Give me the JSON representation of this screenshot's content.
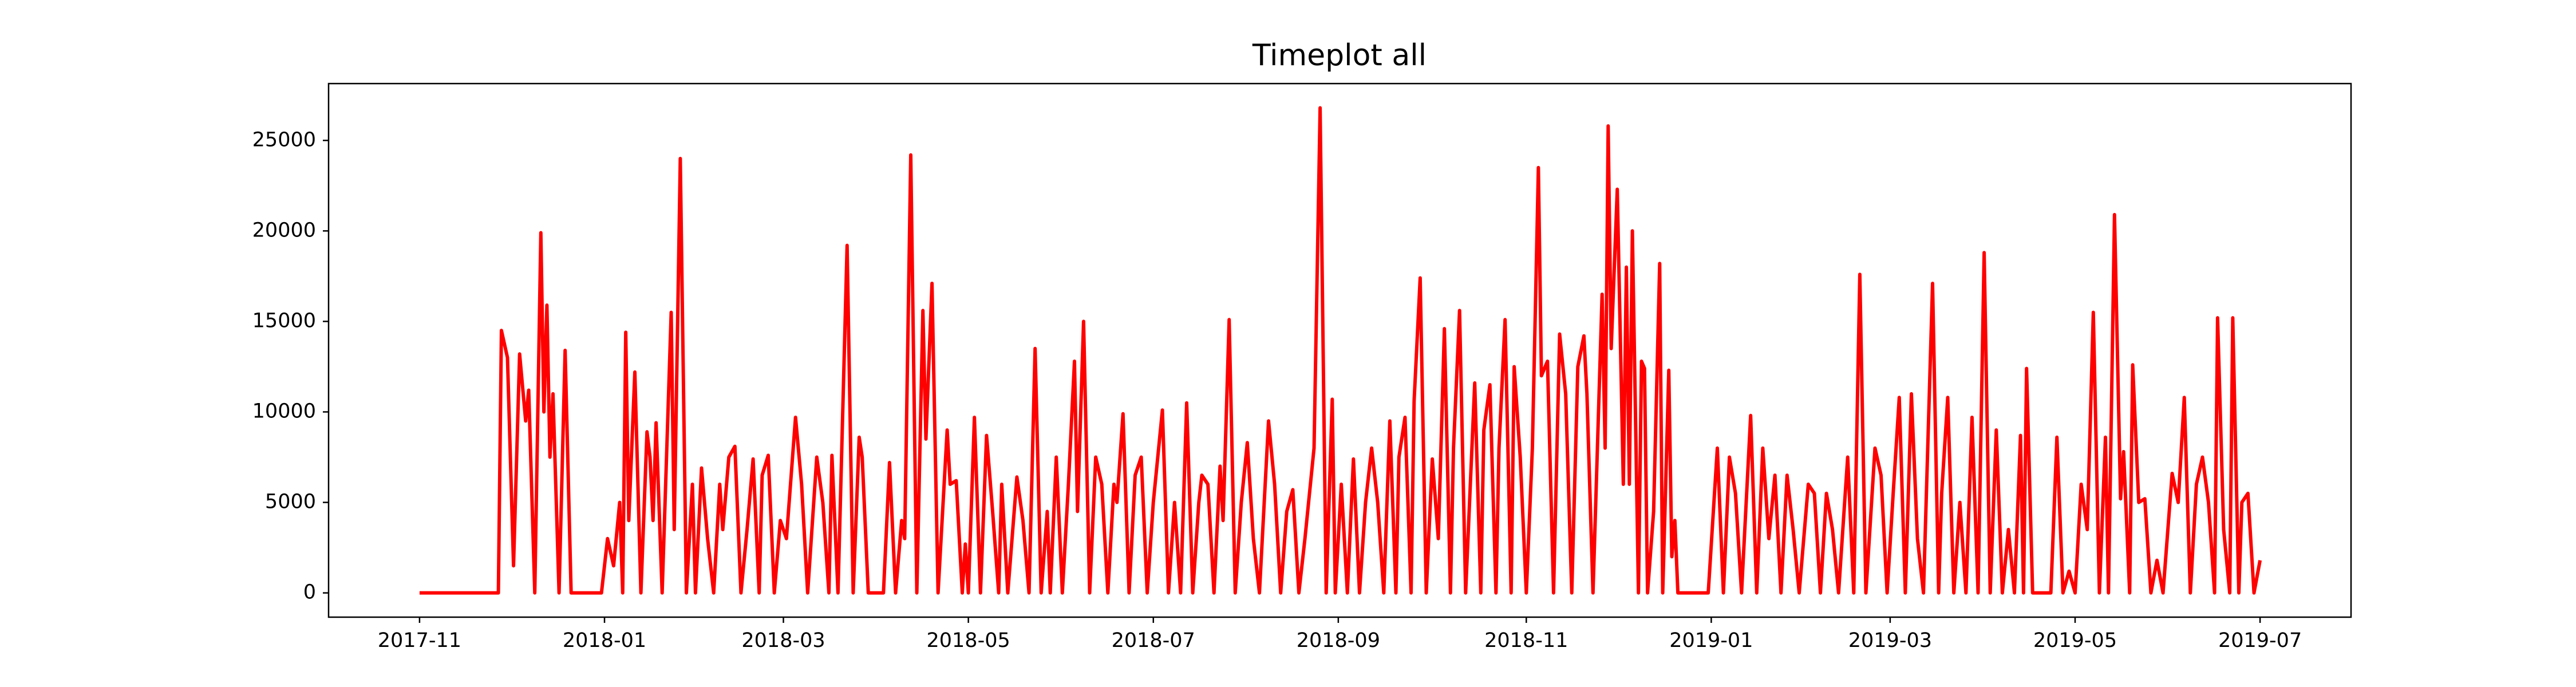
{
  "chart_data": {
    "type": "line",
    "title": "Timeplot all",
    "x": [
      0,
      26,
      27,
      29,
      31,
      33,
      35,
      36,
      38,
      40,
      41,
      42,
      43,
      44,
      46,
      48,
      50,
      60,
      62,
      64,
      66,
      67,
      68,
      69,
      71,
      73,
      75,
      76,
      77,
      78,
      80,
      83,
      84,
      86,
      88,
      90,
      91,
      93,
      95,
      97,
      99,
      100,
      102,
      104,
      106,
      108,
      110,
      112,
      113,
      115,
      117,
      119,
      121,
      124,
      126,
      128,
      131,
      133,
      135,
      136,
      138,
      141,
      143,
      145,
      146,
      148,
      153,
      155,
      157,
      159,
      160,
      162,
      164,
      166,
      167,
      169,
      171,
      174,
      175,
      177,
      179,
      180,
      181,
      183,
      185,
      187,
      189,
      191,
      192,
      194,
      197,
      199,
      201,
      203,
      205,
      207,
      208,
      210,
      212,
      214,
      216,
      217,
      219,
      221,
      223,
      225,
      227,
      229,
      230,
      232,
      234,
      236,
      238,
      240,
      242,
      245,
      247,
      249,
      251,
      253,
      255,
      257,
      258,
      260,
      262,
      264,
      265,
      267,
      269,
      271,
      273,
      275,
      277,
      280,
      282,
      284,
      286,
      288,
      290,
      292,
      295,
      297,
      299,
      301,
      302,
      304,
      306,
      308,
      310,
      312,
      314,
      316,
      318,
      320,
      322,
      323,
      325,
      327,
      328,
      330,
      332,
      334,
      336,
      338,
      340,
      341,
      343,
      345,
      348,
      350,
      351,
      353,
      355,
      356,
      358,
      360,
      361,
      363,
      365,
      367,
      369,
      370,
      372,
      374,
      376,
      378,
      380,
      382,
      384,
      385,
      387,
      390,
      391,
      392,
      393,
      395,
      397,
      398,
      399,
      400,
      402,
      403,
      404,
      405,
      407,
      409,
      410,
      412,
      413,
      414,
      415,
      425,
      428,
      430,
      432,
      434,
      436,
      439,
      441,
      443,
      445,
      447,
      449,
      451,
      453,
      455,
      458,
      460,
      462,
      464,
      466,
      468,
      471,
      473,
      475,
      477,
      480,
      482,
      484,
      486,
      488,
      490,
      492,
      494,
      496,
      499,
      501,
      502,
      504,
      506,
      508,
      510,
      512,
      514,
      516,
      518,
      520,
      522,
      524,
      526,
      528,
      529,
      530,
      532,
      538,
      540,
      542,
      544,
      546,
      548,
      550,
      552,
      554,
      556,
      557,
      559,
      561,
      562,
      564,
      565,
      567,
      569,
      571,
      573,
      575,
      578,
      580,
      582,
      584,
      586,
      588,
      590,
      592,
      593,
      595,
      597,
      598,
      600,
      601,
      603,
      605,
      607
    ],
    "series": [
      {
        "color": "#ff0000",
        "values": [
          0,
          0,
          14500,
          13000,
          1500,
          13200,
          9500,
          11200,
          0,
          19900,
          10000,
          15900,
          7500,
          11000,
          0,
          13400,
          0,
          0,
          3000,
          1500,
          5000,
          0,
          14400,
          4000,
          12200,
          0,
          8900,
          7500,
          4000,
          9400,
          0,
          15500,
          3500,
          24000,
          0,
          6000,
          0,
          6900,
          3000,
          0,
          6000,
          3500,
          7500,
          8100,
          0,
          3500,
          7400,
          0,
          6500,
          7600,
          0,
          4000,
          3000,
          9700,
          6000,
          0,
          7500,
          5000,
          0,
          7600,
          0,
          19200,
          0,
          8600,
          7500,
          0,
          0,
          7200,
          0,
          4000,
          3000,
          24200,
          0,
          15600,
          8500,
          17100,
          0,
          9000,
          6000,
          6200,
          0,
          2700,
          0,
          9700,
          0,
          8700,
          4500,
          0,
          6000,
          0,
          6400,
          4000,
          0,
          13500,
          0,
          4500,
          0,
          7500,
          0,
          6000,
          12800,
          4500,
          15000,
          0,
          7500,
          6000,
          0,
          6000,
          5000,
          9900,
          0,
          6500,
          7500,
          0,
          5000,
          10100,
          0,
          5000,
          0,
          10500,
          0,
          5000,
          6500,
          6000,
          0,
          7000,
          4000,
          15100,
          0,
          5000,
          8300,
          3000,
          0,
          9500,
          6000,
          0,
          4500,
          5700,
          0,
          3000,
          8000,
          26800,
          0,
          10700,
          0,
          6000,
          0,
          7400,
          0,
          5000,
          8000,
          5000,
          0,
          9500,
          0,
          7500,
          9700,
          0,
          10600,
          17400,
          0,
          7400,
          3000,
          14600,
          0,
          8000,
          15600,
          0,
          11600,
          0,
          9000,
          11500,
          0,
          8000,
          15100,
          0,
          12500,
          7500,
          0,
          8000,
          23500,
          12000,
          12800,
          0,
          14300,
          11000,
          0,
          12500,
          14200,
          11000,
          0,
          16500,
          8000,
          25800,
          13500,
          22300,
          6000,
          18000,
          6000,
          20000,
          0,
          12800,
          12400,
          0,
          4500,
          18200,
          0,
          12300,
          2000,
          4000,
          0,
          0,
          8000,
          0,
          7500,
          5500,
          0,
          9800,
          0,
          8000,
          3000,
          6500,
          0,
          6500,
          3500,
          0,
          6000,
          5500,
          0,
          5500,
          3500,
          0,
          7500,
          0,
          17600,
          0,
          8000,
          6500,
          0,
          5500,
          10800,
          0,
          11000,
          3000,
          0,
          17100,
          0,
          5500,
          10800,
          0,
          5000,
          0,
          9700,
          0,
          18800,
          0,
          9000,
          0,
          3500,
          0,
          8700,
          0,
          12400,
          0,
          0,
          8600,
          0,
          1200,
          0,
          6000,
          3500,
          15500,
          0,
          8600,
          0,
          20900,
          5200,
          7800,
          0,
          12600,
          5000,
          5200,
          0,
          1800,
          0,
          6600,
          5000,
          10800,
          0,
          6000,
          7500,
          5000,
          0,
          15200,
          3500,
          0,
          15200,
          0,
          5000,
          5500,
          0,
          1800
        ]
      }
    ],
    "xlim": [
      -30,
      637
    ],
    "xticks": [
      {
        "value": 0,
        "label": "2017-11"
      },
      {
        "value": 61,
        "label": "2018-01"
      },
      {
        "value": 120,
        "label": "2018-03"
      },
      {
        "value": 181,
        "label": "2018-05"
      },
      {
        "value": 242,
        "label": "2018-07"
      },
      {
        "value": 303,
        "label": "2018-09"
      },
      {
        "value": 365,
        "label": "2018-11"
      },
      {
        "value": 426,
        "label": "2019-01"
      },
      {
        "value": 485,
        "label": "2019-03"
      },
      {
        "value": 546,
        "label": "2019-05"
      },
      {
        "value": 607,
        "label": "2019-07"
      }
    ],
    "ylim": [
      -1340,
      28140
    ],
    "yticks": [
      0,
      5000,
      10000,
      15000,
      20000,
      25000
    ],
    "grid": false
  }
}
